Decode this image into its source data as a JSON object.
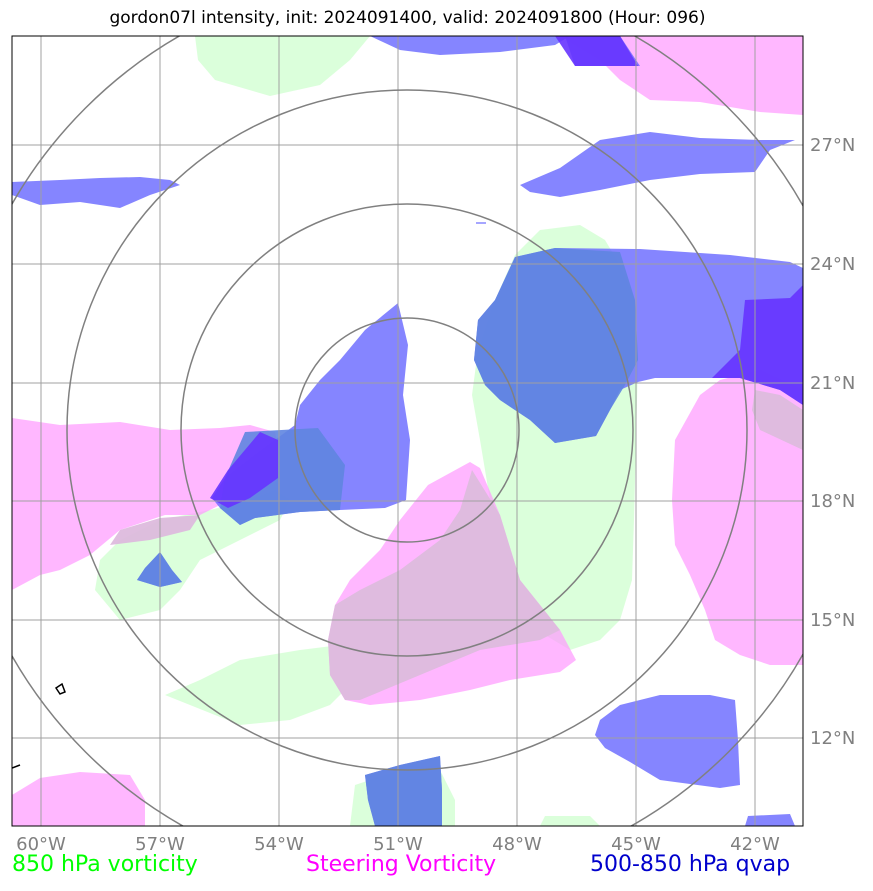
{
  "title": "gordon07l intensity, init: 2024091400, valid: 2024091800 (Hour: 096)",
  "map": {
    "lon_ticks": [
      "60°W",
      "57°W",
      "54°W",
      "51°W",
      "48°W",
      "45°W",
      "42°W"
    ],
    "lat_ticks": [
      "27°N",
      "24°N",
      "21°N",
      "18°N",
      "15°N",
      "12°N"
    ],
    "gridline_color": "#a0a0a0",
    "range_ring_color": "#808080"
  },
  "legend": {
    "vort850": {
      "label": "850 hPa vorticity",
      "color": "#00ff00"
    },
    "steering": {
      "label": "Steering Vorticity",
      "color": "#ff00ff"
    },
    "qvap": {
      "label": "500-850 hPa qvap",
      "color": "#0000cc"
    }
  },
  "colors": {
    "vort850_fill": "#ccffcc",
    "steering_fill": "#ff99ff",
    "qvap_fill": "#6666ff",
    "qvap_strong_fill": "#6633ff"
  }
}
